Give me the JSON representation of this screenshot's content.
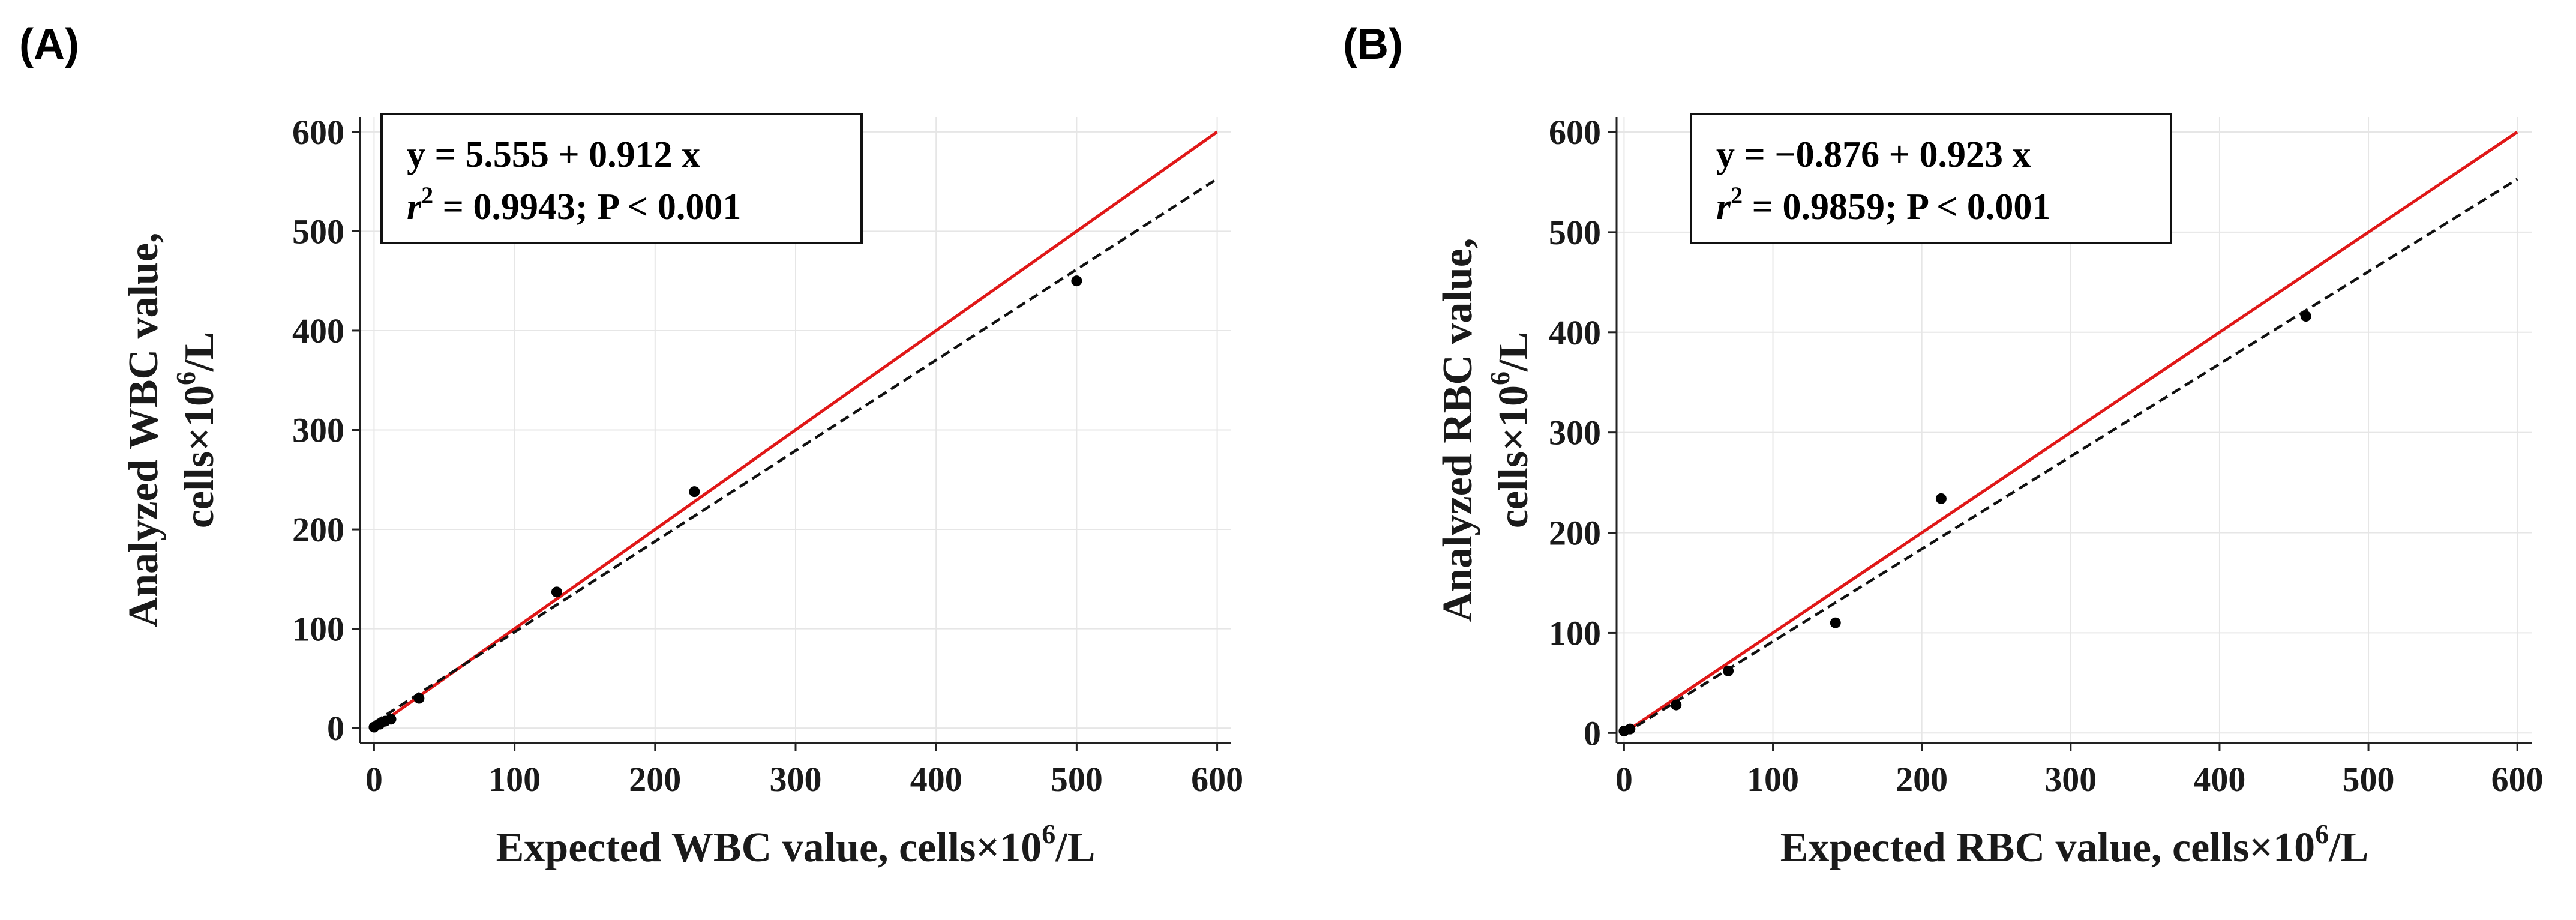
{
  "chart_data": [
    {
      "type": "scatter",
      "panel_label": "(A)",
      "title": "",
      "xlabel_parts": [
        "Expected WBC value, cells×10",
        "6",
        "/L"
      ],
      "ylabel_line1": "Analyzed WBC value,",
      "ylabel_line2_parts": [
        "cells×10",
        "6",
        "/L"
      ],
      "xlim": [
        -10,
        610
      ],
      "ylim": [
        -15,
        615
      ],
      "xticks": [
        0,
        100,
        200,
        300,
        400,
        500,
        600
      ],
      "yticks": [
        0,
        100,
        200,
        300,
        400,
        500,
        600
      ],
      "grid": true,
      "equation": "y = 5.555 + 0.912 x",
      "r2_parts": {
        "symbol": "r",
        "superscript": "2",
        "value": " = 0.9943; P < 0.001"
      },
      "identity_line": {
        "color": "#e01818",
        "from": [
          0,
          0
        ],
        "to": [
          600,
          600
        ]
      },
      "regression": {
        "intercept": 5.555,
        "slope": 0.912,
        "x_range": [
          0,
          600
        ],
        "style": "dashed"
      },
      "points": [
        {
          "x": 0,
          "y": 1
        },
        {
          "x": 4,
          "y": 4
        },
        {
          "x": 8,
          "y": 7
        },
        {
          "x": 12,
          "y": 9
        },
        {
          "x": 32,
          "y": 30
        },
        {
          "x": 130,
          "y": 137
        },
        {
          "x": 228,
          "y": 238
        },
        {
          "x": 500,
          "y": 450
        }
      ]
    },
    {
      "type": "scatter",
      "panel_label": "(B)",
      "title": "",
      "xlabel_parts": [
        "Expected RBC value, cells×10",
        "6",
        "/L"
      ],
      "ylabel_line1": "Analyzed RBC value,",
      "ylabel_line2_parts": [
        "cells×10",
        "6",
        "/L"
      ],
      "xlim": [
        -5,
        610
      ],
      "ylim": [
        -10,
        615
      ],
      "xticks": [
        0,
        100,
        200,
        300,
        400,
        500,
        600
      ],
      "yticks": [
        0,
        100,
        200,
        300,
        400,
        500,
        600
      ],
      "grid": true,
      "equation": "y = −0.876 + 0.923 x",
      "r2_parts": {
        "symbol": "r",
        "superscript": "2",
        "value": " = 0.9859; P < 0.001"
      },
      "identity_line": {
        "color": "#e01818",
        "from": [
          0,
          0
        ],
        "to": [
          600,
          600
        ]
      },
      "regression": {
        "intercept": -0.876,
        "slope": 0.923,
        "x_range": [
          0,
          600
        ],
        "style": "dashed"
      },
      "points": [
        {
          "x": 0,
          "y": 2
        },
        {
          "x": 4,
          "y": 4
        },
        {
          "x": 35,
          "y": 28
        },
        {
          "x": 70,
          "y": 62
        },
        {
          "x": 142,
          "y": 110
        },
        {
          "x": 213,
          "y": 234
        },
        {
          "x": 458,
          "y": 416
        }
      ]
    }
  ]
}
